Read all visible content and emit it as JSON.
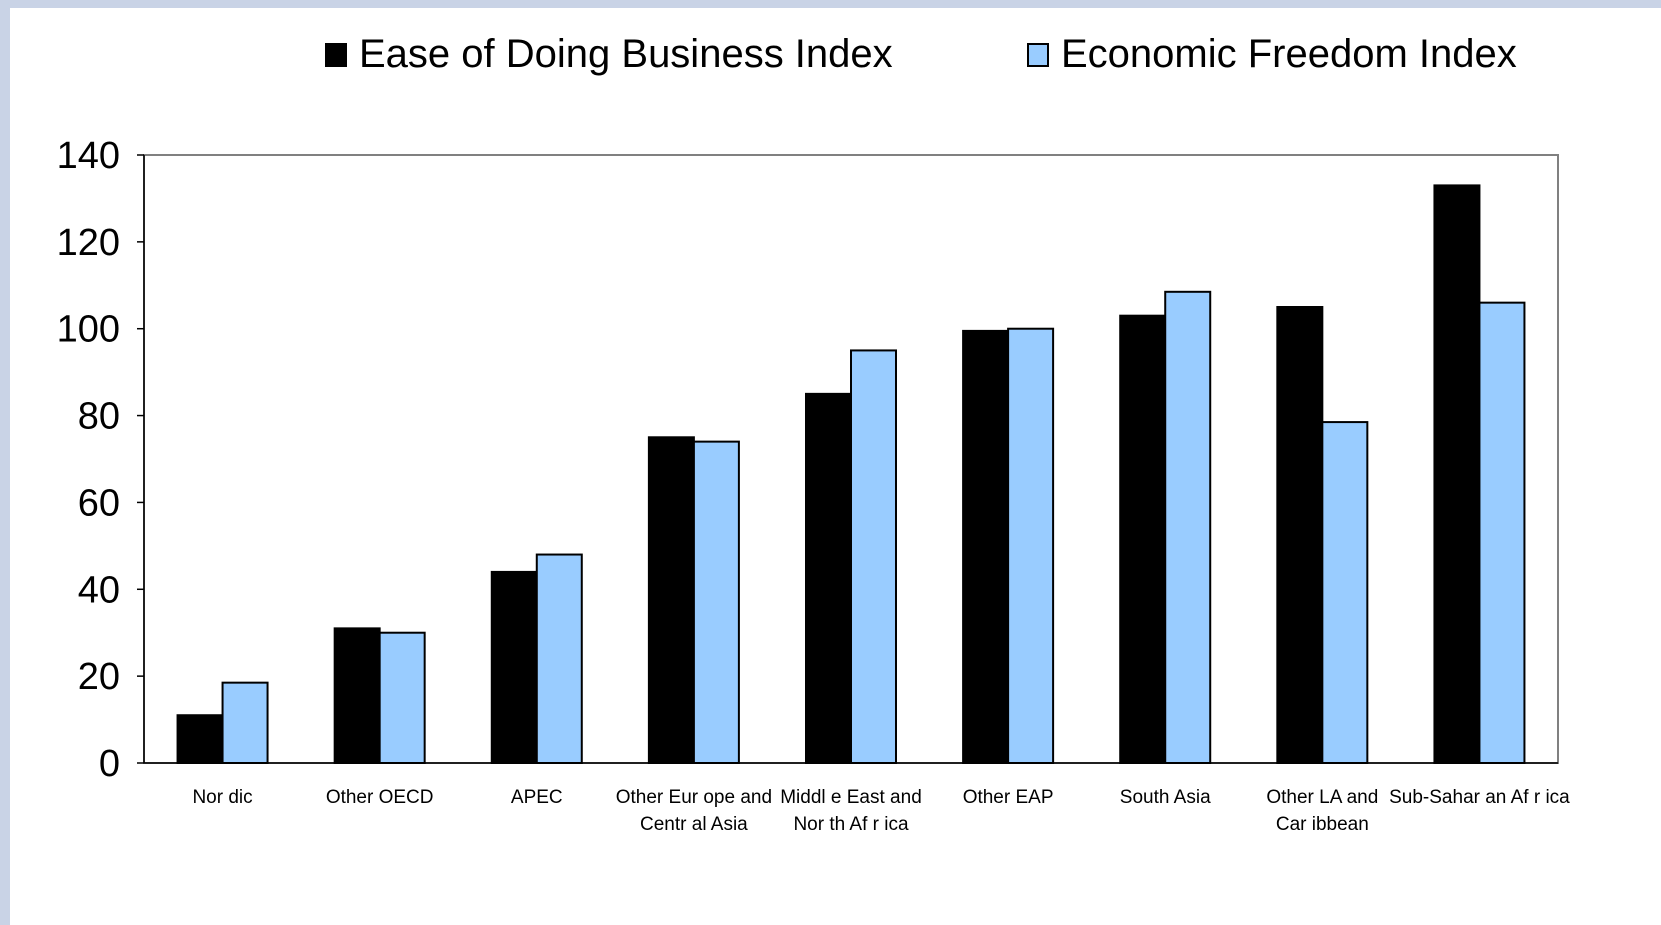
{
  "colors": {
    "background": "#c9d3e6",
    "plot_background": "#ffffff",
    "series_1": "#000000",
    "series_2": "#99ccff"
  },
  "chart_data": {
    "type": "bar",
    "title": "",
    "xlabel": "",
    "ylabel": "",
    "ylim": [
      0,
      140
    ],
    "yticks": [
      "0",
      "20",
      "40",
      "60",
      "80",
      "100",
      "120",
      "140"
    ],
    "legend_position": "top",
    "grid": false,
    "categories": [
      [
        "Nor dic"
      ],
      [
        "Other OECD"
      ],
      [
        "APEC"
      ],
      [
        "Other Eur ope and",
        "Centr al Asia"
      ],
      [
        "Middl e East and",
        "Nor th Af r ica"
      ],
      [
        "Other EAP"
      ],
      [
        "South Asia"
      ],
      [
        "Other LA and",
        "Car ibbean"
      ],
      [
        "Sub-Sahar an Af r ica"
      ]
    ],
    "series": [
      {
        "name": "Ease of Doing Business Index",
        "color": "#000000",
        "values": [
          11,
          31,
          44,
          75,
          85,
          99.5,
          103,
          105,
          133
        ]
      },
      {
        "name": "Economic Freedom Index",
        "color": "#99ccff",
        "values": [
          18.5,
          30,
          48,
          74,
          95,
          100,
          108.5,
          78.5,
          106
        ]
      }
    ]
  }
}
